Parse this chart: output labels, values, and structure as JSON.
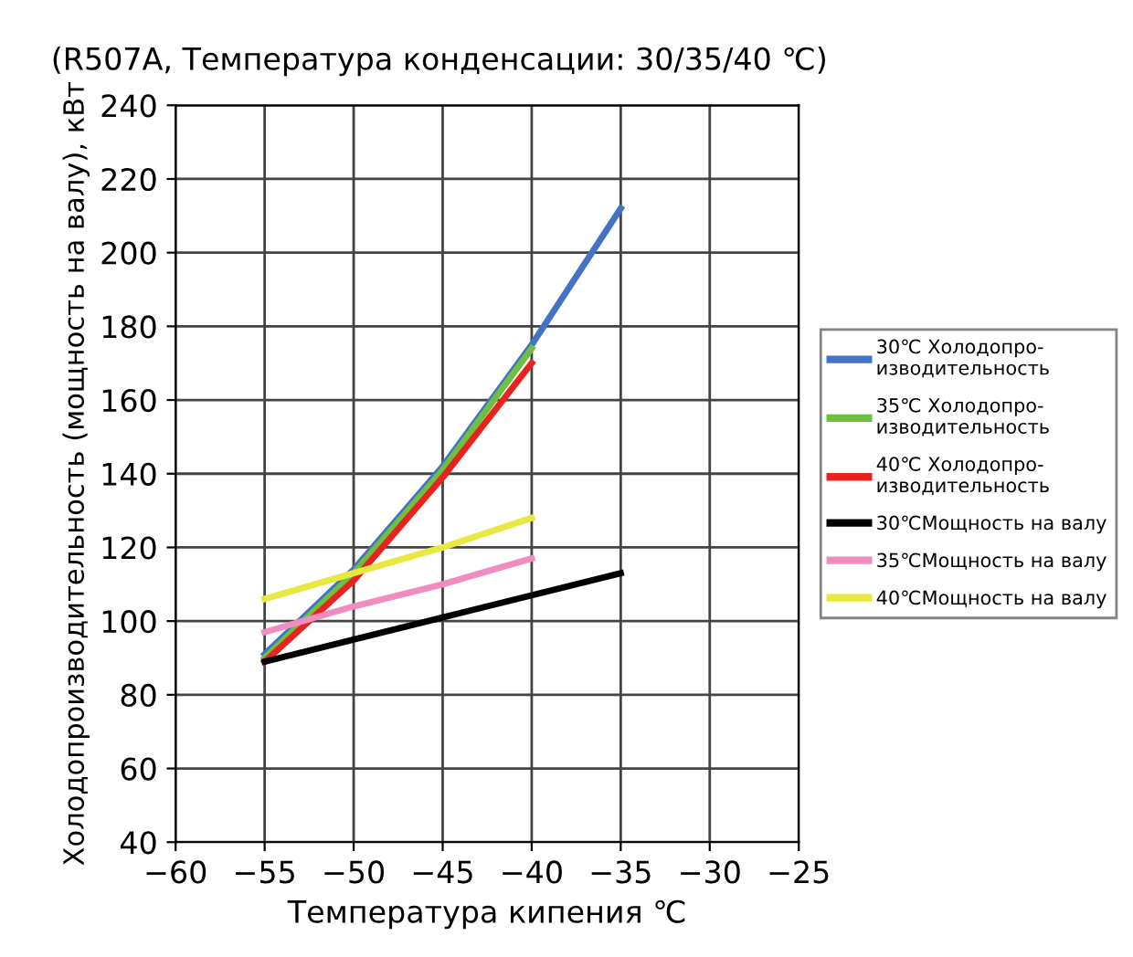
{
  "chart_data": {
    "type": "line",
    "title": "(R507A, Температура конденсации: 30/35/40 ℃)",
    "xlabel": "Температура кипения ℃",
    "ylabel": "Холодопроизводительность (мощность на валу), кВт",
    "xlim": [
      -60,
      -25
    ],
    "xticks": [
      {
        "value": -60,
        "label": "−60"
      },
      {
        "value": -55,
        "label": "−55"
      },
      {
        "value": -50,
        "label": "−50"
      },
      {
        "value": -45,
        "label": "−45"
      },
      {
        "value": -40,
        "label": "−40"
      },
      {
        "value": -35,
        "label": "−35"
      },
      {
        "value": -30,
        "label": "−30"
      },
      {
        "value": -25,
        "label": "−25"
      }
    ],
    "ylim": [
      40,
      240
    ],
    "yticks": [
      40,
      60,
      80,
      100,
      120,
      140,
      160,
      180,
      200,
      220,
      240
    ],
    "grid": true,
    "legend": "right",
    "marker": "none",
    "line_style": "solid",
    "series": [
      {
        "name": "30℃ Холодопро-\nизводительность",
        "color": "#4472c4",
        "x": [
          -55,
          -50,
          -45,
          -40,
          -35
        ],
        "values": [
          91,
          114,
          142,
          175,
          212
        ]
      },
      {
        "name": "35℃ Холодопро-\nизводительность",
        "color": "#70c040",
        "x": [
          -55,
          -50,
          -45,
          -40
        ],
        "values": [
          90,
          113,
          141,
          174
        ]
      },
      {
        "name": "40℃ Холодопро-\nизводительность",
        "color": "#e8221e",
        "x": [
          -55,
          -50,
          -45,
          -40
        ],
        "values": [
          89,
          111,
          139,
          170
        ]
      },
      {
        "name": "30℃Мощность на валу",
        "color": "#000000",
        "x": [
          -55,
          -45,
          -35
        ],
        "values": [
          89,
          101,
          113
        ]
      },
      {
        "name": "35℃Мощность на валу",
        "color": "#f08cc0",
        "x": [
          -55,
          -50,
          -45,
          -40
        ],
        "values": [
          97,
          104,
          110,
          117
        ]
      },
      {
        "name": "40℃Мощность на валу",
        "color": "#e8e840",
        "x": [
          -55,
          -50,
          -45,
          -40
        ],
        "values": [
          106,
          113,
          120,
          128
        ]
      }
    ]
  }
}
